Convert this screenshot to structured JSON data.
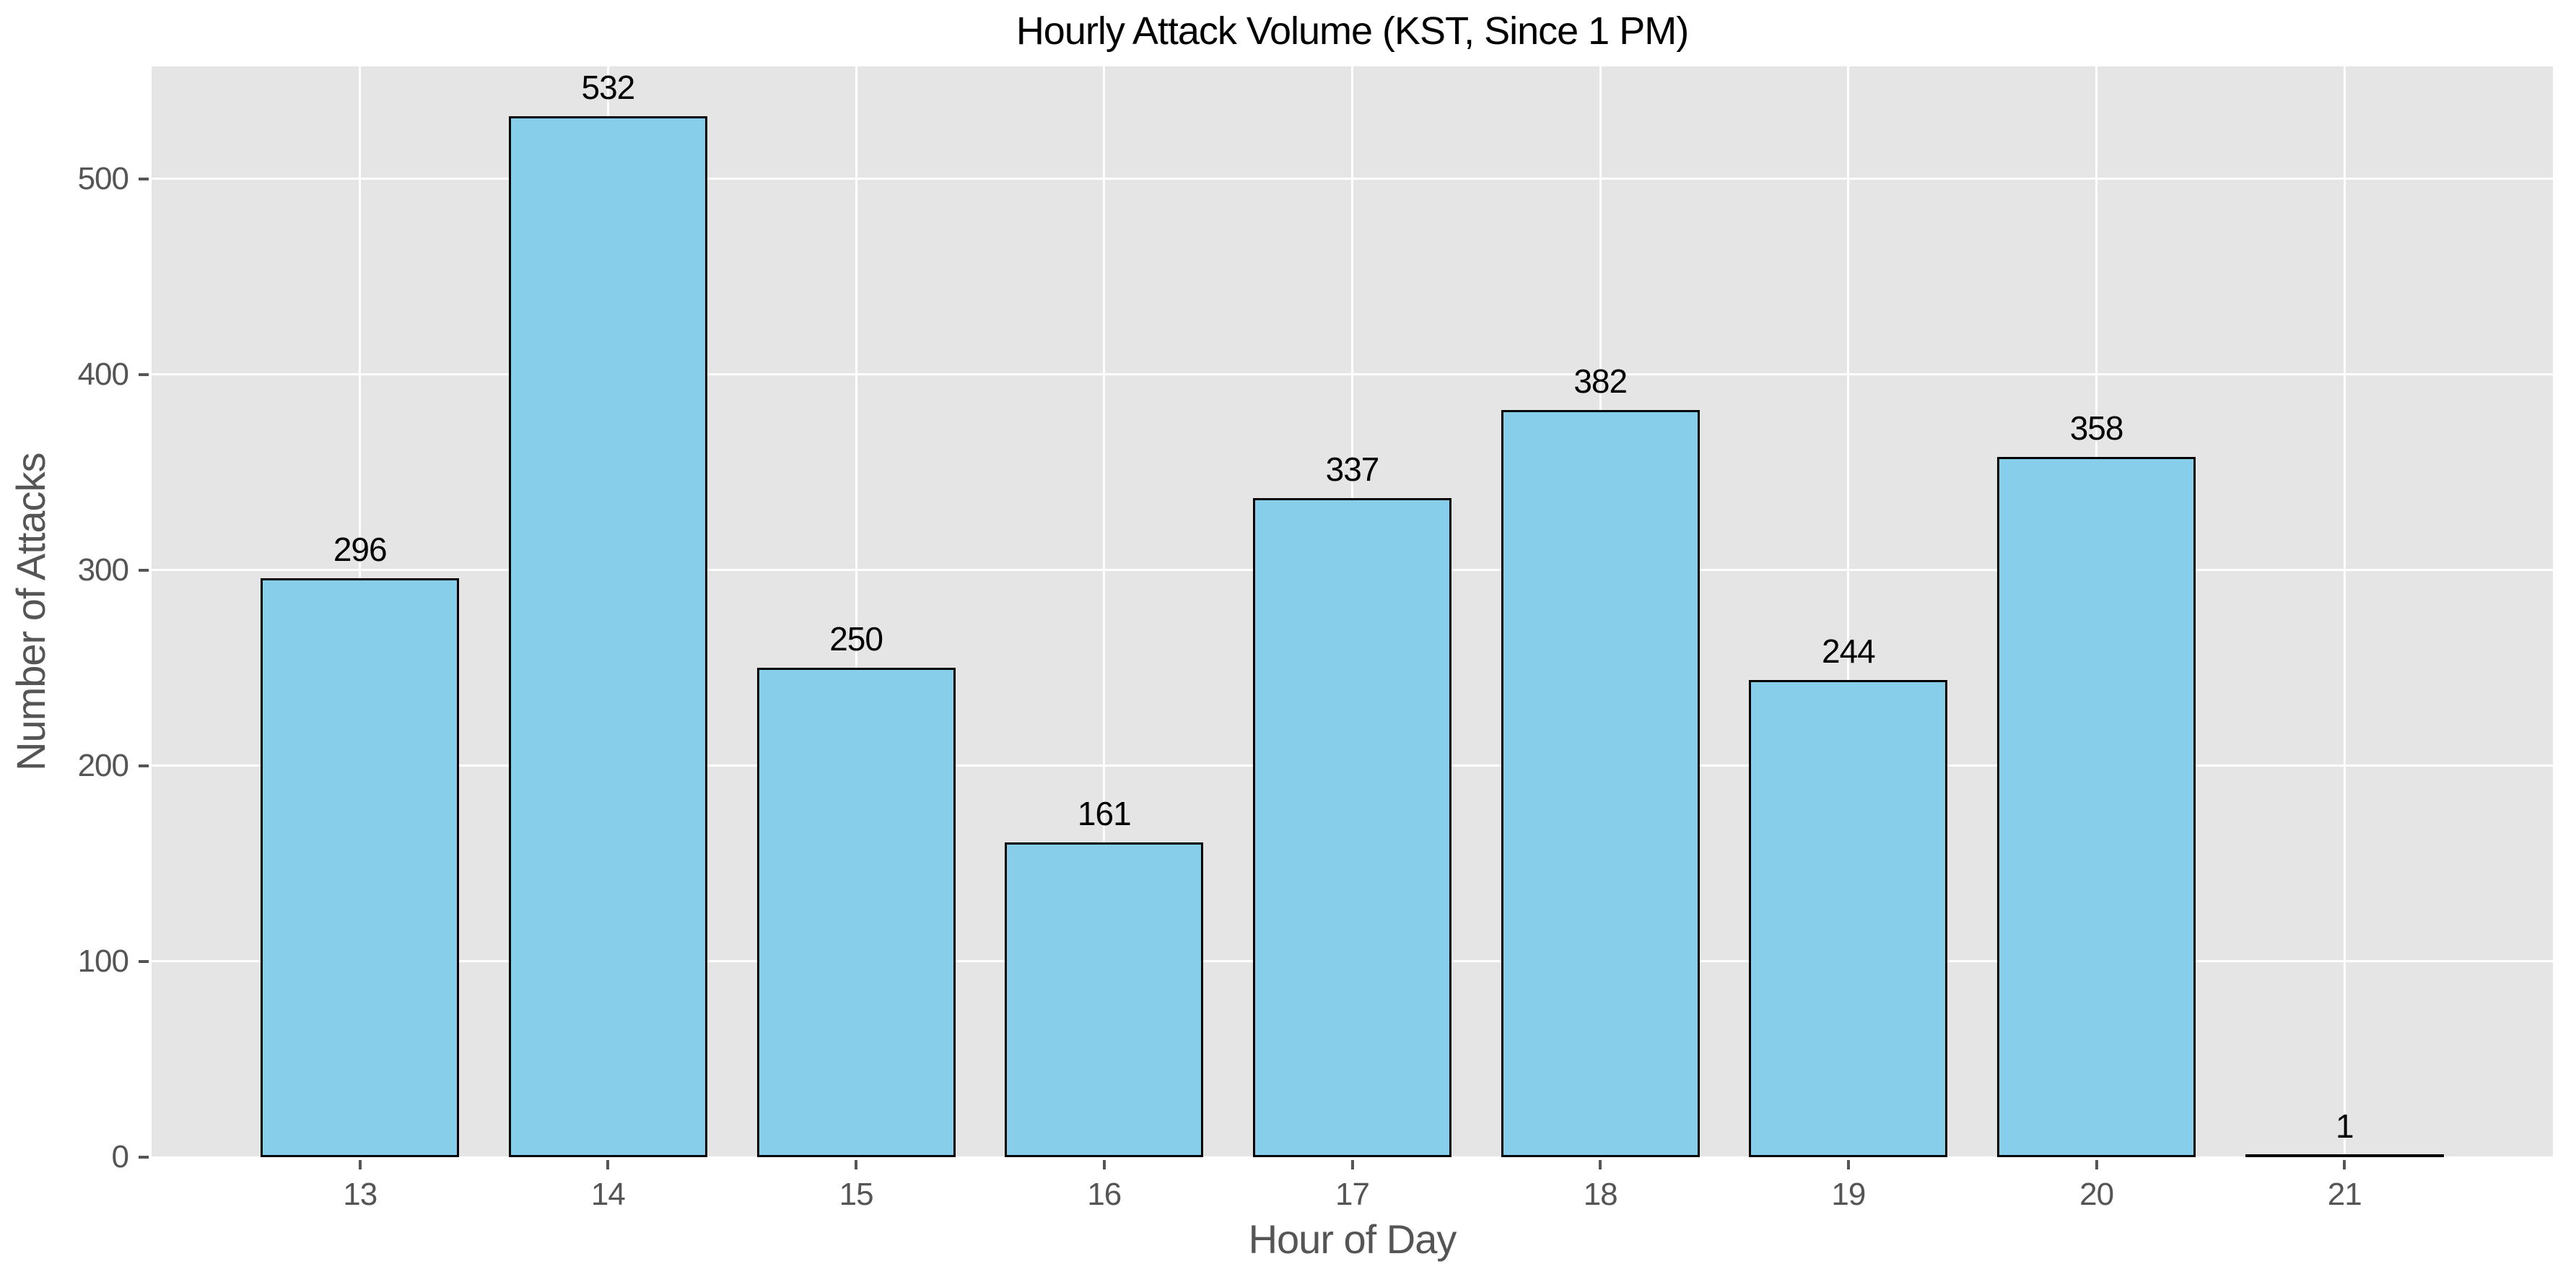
{
  "chart_data": {
    "type": "bar",
    "title": "Hourly Attack Volume (KST, Since 1 PM)",
    "xlabel": "Hour of Day",
    "ylabel": "Number of Attacks",
    "categories": [
      13,
      14,
      15,
      16,
      17,
      18,
      19,
      20,
      21
    ],
    "values": [
      296,
      532,
      250,
      161,
      337,
      382,
      244,
      358,
      1
    ],
    "bar_labels": [
      "296",
      "532",
      "250",
      "161",
      "337",
      "382",
      "244",
      "358",
      "1"
    ],
    "xtick_labels": [
      "13",
      "14",
      "15",
      "16",
      "17",
      "18",
      "19",
      "20",
      "21"
    ],
    "yticks": [
      0,
      100,
      200,
      300,
      400,
      500
    ],
    "ytick_labels": [
      "0",
      "100",
      "200",
      "300",
      "400",
      "500"
    ],
    "xlim": [
      12.16,
      21.84
    ],
    "ylim": [
      0,
      557.5
    ],
    "bar_width": 0.8,
    "grid": true,
    "legend": "none",
    "colors": {
      "bar_fill": "#87CEEB",
      "bar_edge": "#000000",
      "plot_bg": "#E5E5E5",
      "figure_bg": "#FFFFFF",
      "grid_color": "#FFFFFF",
      "tick_text": "#555555",
      "axis_label_text": "#555555",
      "title_text": "#000000",
      "value_label_text": "#000000"
    }
  }
}
